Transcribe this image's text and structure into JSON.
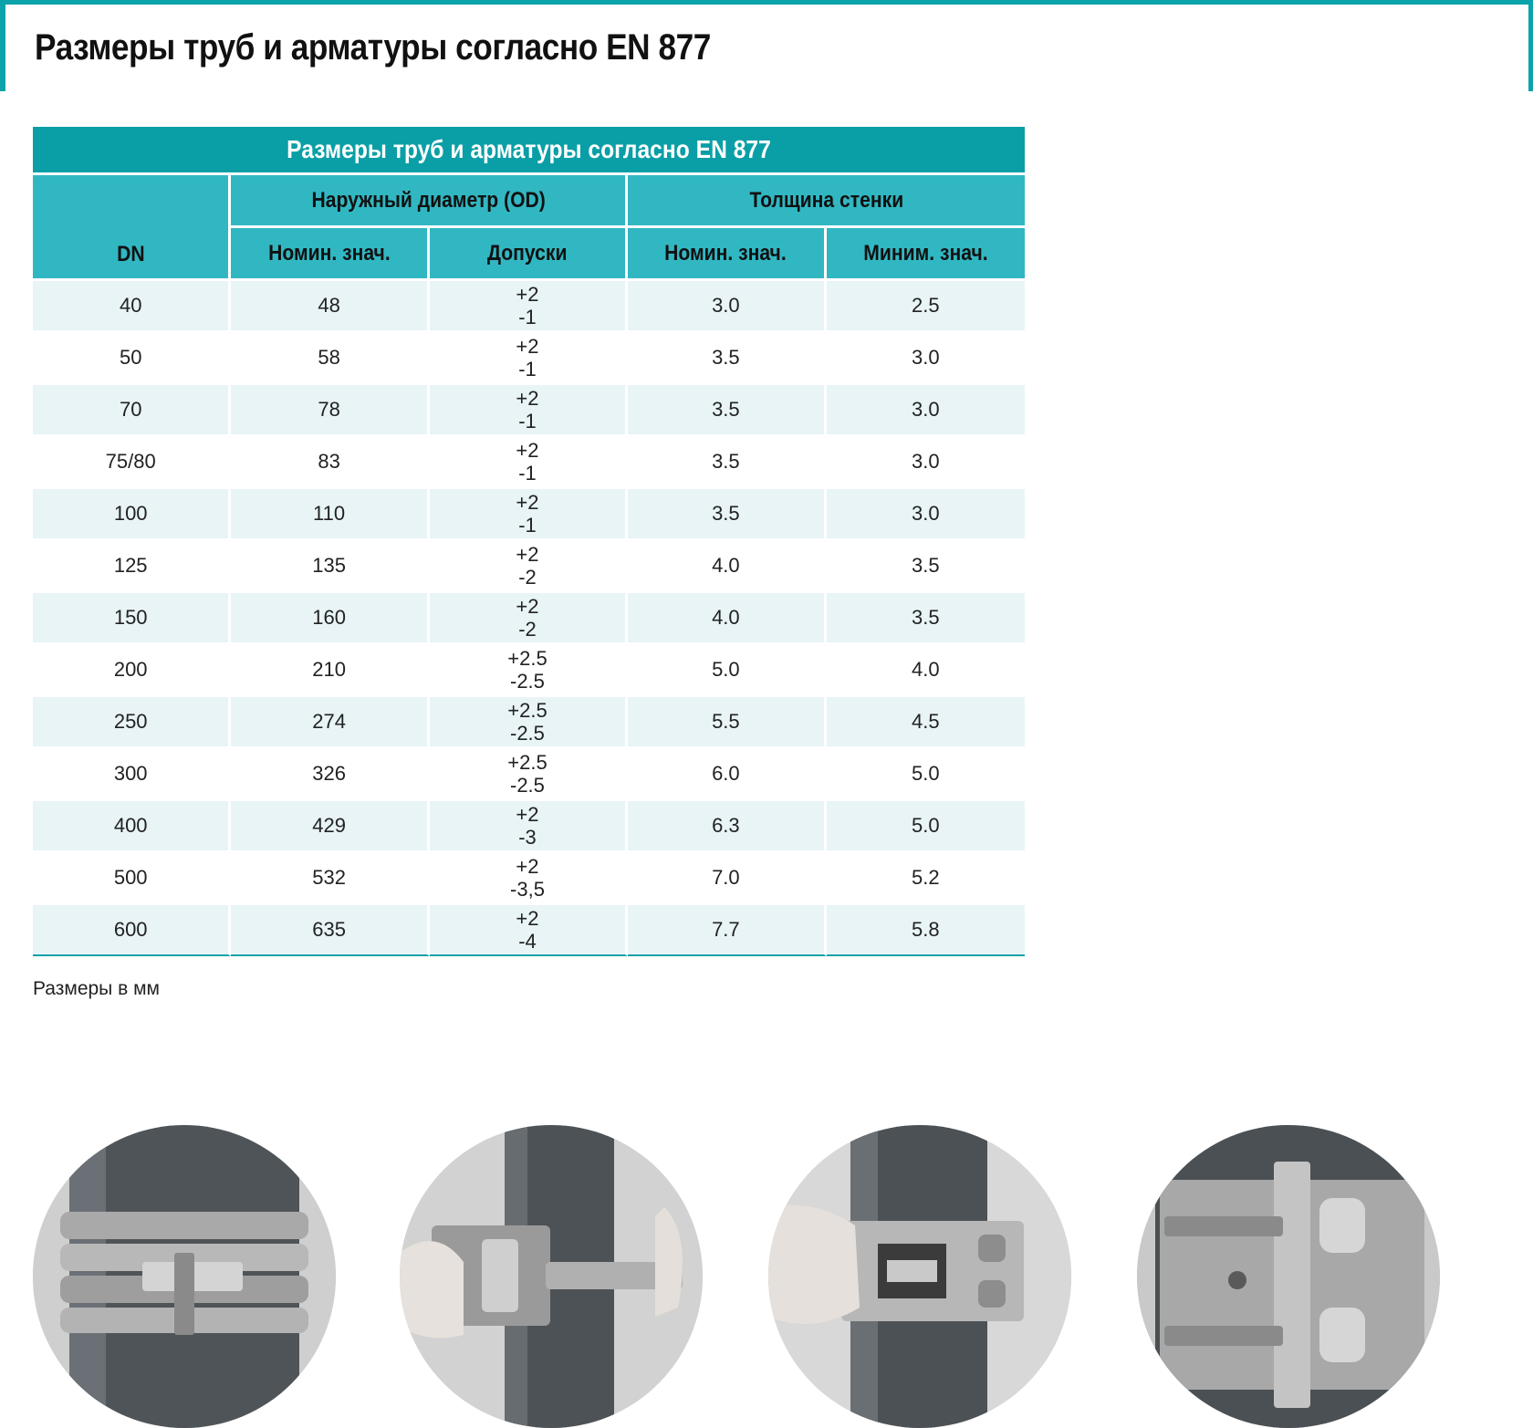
{
  "title": "Размеры труб и арматуры согласно EN 877",
  "table": {
    "caption": "Размеры труб и арматуры согласно EN 877",
    "dn_header": "DN",
    "od_group": "Наружный диаметр (OD)",
    "wall_group": "Толщина стенки",
    "od_nominal": "Номин. знач.",
    "od_tolerance": "Допуски",
    "wall_nominal": "Номин. знач.",
    "wall_min": "Миним. знач.",
    "rows": [
      {
        "dn": "40",
        "od": "48",
        "tol_plus": "+2",
        "tol_minus": "-1",
        "wall_nom": "3.0",
        "wall_min": "2.5"
      },
      {
        "dn": "50",
        "od": "58",
        "tol_plus": "+2",
        "tol_minus": "-1",
        "wall_nom": "3.5",
        "wall_min": "3.0"
      },
      {
        "dn": "70",
        "od": "78",
        "tol_plus": "+2",
        "tol_minus": "-1",
        "wall_nom": "3.5",
        "wall_min": "3.0"
      },
      {
        "dn": "75/80",
        "od": "83",
        "tol_plus": "+2",
        "tol_minus": "-1",
        "wall_nom": "3.5",
        "wall_min": "3.0"
      },
      {
        "dn": "100",
        "od": "110",
        "tol_plus": "+2",
        "tol_minus": "-1",
        "wall_nom": "3.5",
        "wall_min": "3.0"
      },
      {
        "dn": "125",
        "od": "135",
        "tol_plus": "+2",
        "tol_minus": "-2",
        "wall_nom": "4.0",
        "wall_min": "3.5"
      },
      {
        "dn": "150",
        "od": "160",
        "tol_plus": "+2",
        "tol_minus": "-2",
        "wall_nom": "4.0",
        "wall_min": "3.5"
      },
      {
        "dn": "200",
        "od": "210",
        "tol_plus": "+2.5",
        "tol_minus": "-2.5",
        "wall_nom": "5.0",
        "wall_min": "4.0"
      },
      {
        "dn": "250",
        "od": "274",
        "tol_plus": "+2.5",
        "tol_minus": "-2.5",
        "wall_nom": "5.5",
        "wall_min": "4.5"
      },
      {
        "dn": "300",
        "od": "326",
        "tol_plus": "+2.5",
        "tol_minus": "-2.5",
        "wall_nom": "6.0",
        "wall_min": "5.0"
      },
      {
        "dn": "400",
        "od": "429",
        "tol_plus": "+2",
        "tol_minus": "-3",
        "wall_nom": "6.3",
        "wall_min": "5.0"
      },
      {
        "dn": "500",
        "od": "532",
        "tol_plus": "+2",
        "tol_minus": "-3,5",
        "wall_nom": "7.0",
        "wall_min": "5.2"
      },
      {
        "dn": "600",
        "od": "635",
        "tol_plus": "+2",
        "tol_minus": "-4",
        "wall_nom": "7.7",
        "wall_min": "5.8"
      }
    ]
  },
  "note": "Размеры в мм",
  "colors": {
    "accent": "#0aa3a9",
    "header": "#31b7c2",
    "row_alt": "#e8f4f6"
  },
  "photos": [
    "pipe-coupling-photo",
    "coupling-install-photo",
    "coupling-tighten-photo",
    "coupling-closeup-photo"
  ]
}
